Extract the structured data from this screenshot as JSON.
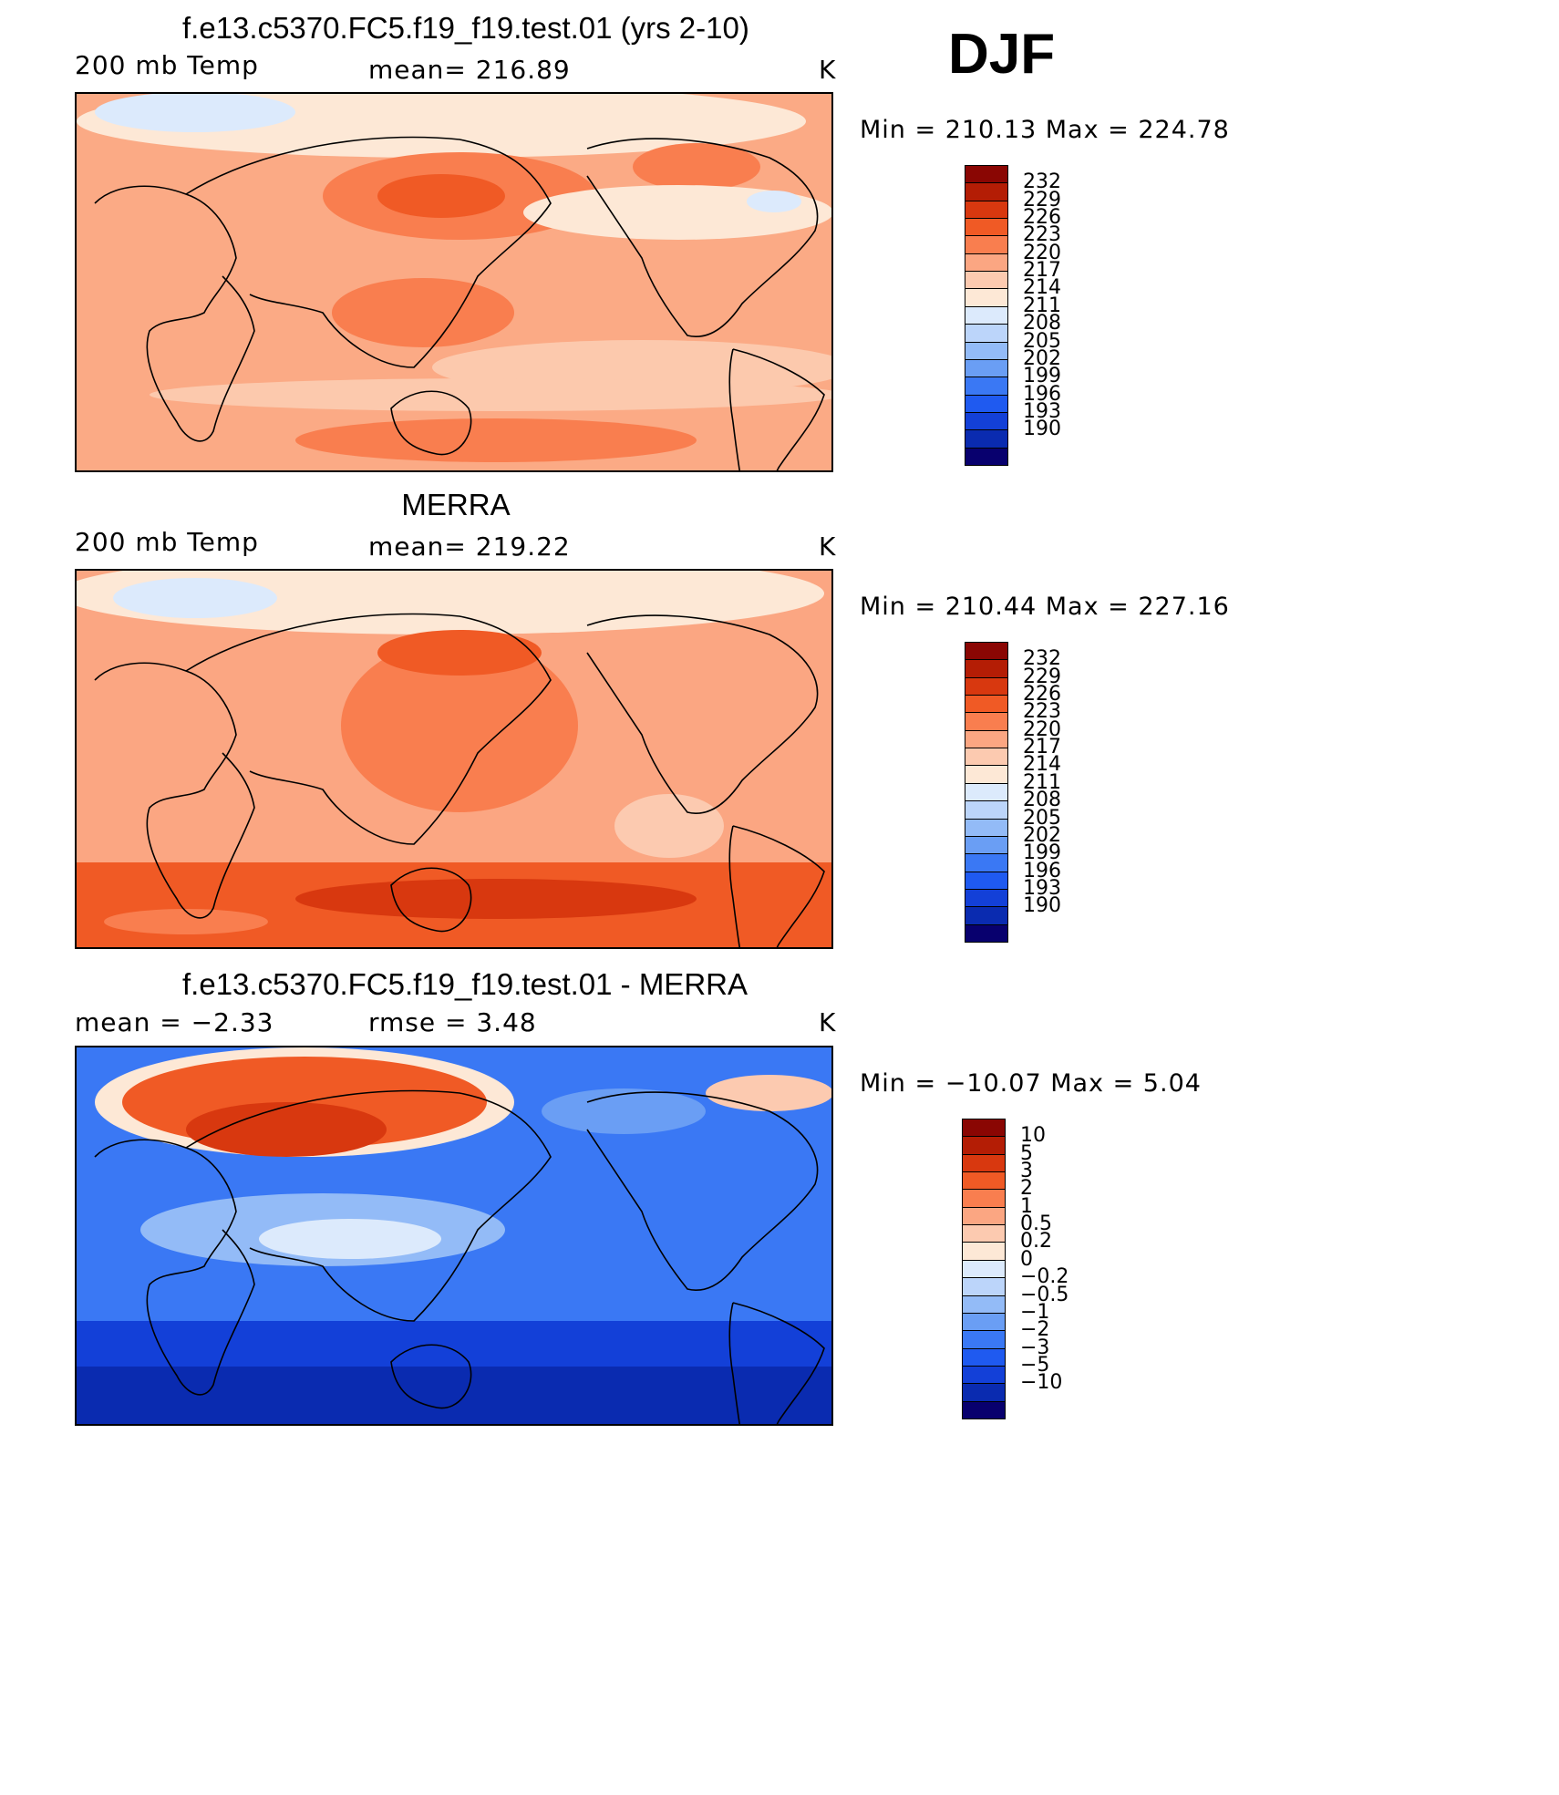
{
  "season": "DJF",
  "colors": {
    "cbar_temp": [
      "#08006e",
      "#0a2bb0",
      "#1340d8",
      "#1f5af0",
      "#3a78f4",
      "#6a9ef4",
      "#93bbf7",
      "#bcd5fa",
      "#dceafc",
      "#fde8d6",
      "#fccab0",
      "#fba682",
      "#f97e4f",
      "#f05a25",
      "#d8380f",
      "#b41d05",
      "#8a0603"
    ],
    "cbar_diff": [
      "#08006e",
      "#0a2bb0",
      "#1340d8",
      "#1f5af0",
      "#3a78f4",
      "#6a9ef4",
      "#93bbf7",
      "#bcd5fa",
      "#dceafc",
      "#fde8d6",
      "#fccab0",
      "#fba682",
      "#f97e4f",
      "#f05a25",
      "#d8380f",
      "#b41d05",
      "#8a0603"
    ]
  },
  "panels": [
    {
      "title": "f.e13.c5370.FC5.f19_f19.test.01 (yrs 2-10)",
      "left_label": "200 mb Temp",
      "center_label": "mean=  216.89",
      "units": "K",
      "minmax": "Min  =  210.13  Max  =  224.78",
      "colorbar_labels": [
        "232",
        "229",
        "226",
        "223",
        "220",
        "217",
        "214",
        "211",
        "208",
        "205",
        "202",
        "199",
        "196",
        "193",
        "190"
      ],
      "fields": {
        "base": "#fbaa85",
        "band": "#fcc9ad",
        "hot": "#f97e4f",
        "hot2": "#f05a25",
        "cold": "#dceafc",
        "pale": "#fde8d6"
      }
    },
    {
      "title": "MERRA",
      "left_label": "200 mb Temp",
      "center_label": "mean=  219.22",
      "units": "K",
      "minmax": "Min  =  210.44  Max  =  227.16",
      "colorbar_labels": [
        "232",
        "229",
        "226",
        "223",
        "220",
        "217",
        "214",
        "211",
        "208",
        "205",
        "202",
        "199",
        "196",
        "193",
        "190"
      ],
      "fields": {
        "base": "#fba682",
        "band": "#fccab0",
        "hot": "#f97e4f",
        "hot2": "#f05a25",
        "cold": "#dceafc",
        "pale": "#fde8d6"
      }
    },
    {
      "title": "f.e13.c5370.FC5.f19_f19.test.01 - MERRA",
      "left_label": "mean =    −2.33",
      "center_label": "rmse =     3.48",
      "units": "K",
      "minmax": "Min  =  −10.07  Max  =      5.04",
      "colorbar_labels": [
        "10",
        "5",
        "3",
        "2",
        "1",
        "0.5",
        "0.2",
        "0",
        "−0.2",
        "−0.5",
        "−1",
        "−2",
        "−3",
        "−5",
        "−10"
      ],
      "fields": {
        "base": "#3a78f4",
        "band": "#1f5af0",
        "hot": "#f05a25",
        "hot2": "#d8380f",
        "cold": "#1340d8",
        "pale": "#93bbf7"
      }
    }
  ]
}
